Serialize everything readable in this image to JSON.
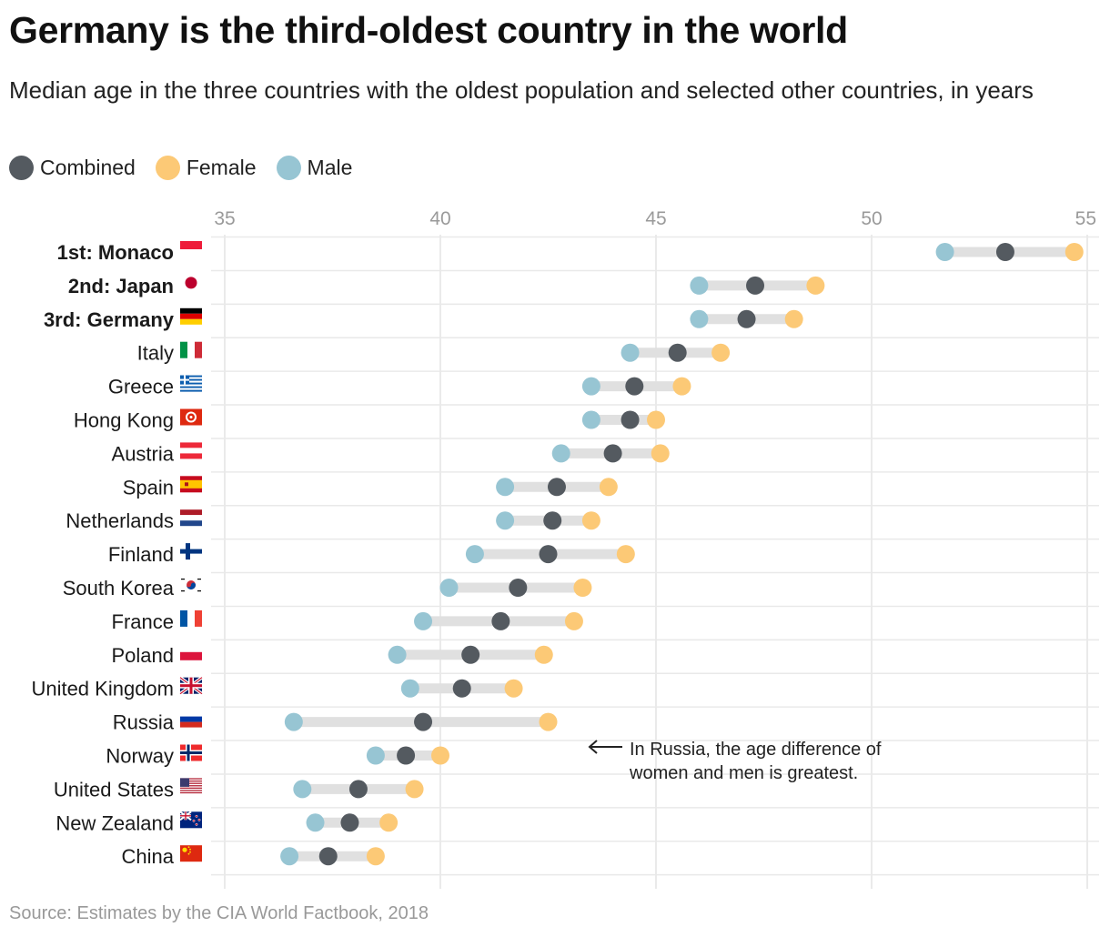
{
  "header": {
    "title": "Germany is the third-oldest country in the world",
    "subtitle": "Median age in the three countries with the oldest population and selected other countries, in years"
  },
  "legend": [
    {
      "label": "Combined",
      "color": "#545a60"
    },
    {
      "label": "Female",
      "color": "#fcc976"
    },
    {
      "label": "Male",
      "color": "#97c5d3"
    }
  ],
  "source": "Source: Estimates by the CIA World Factbook, 2018",
  "chart_data": {
    "type": "dot-range",
    "title": "Germany is the third-oldest country in the world",
    "xlim": [
      35,
      55
    ],
    "ticks": [
      35,
      40,
      45,
      50,
      55
    ],
    "series_colors": {
      "male": "#97c5d3",
      "combined": "#545a60",
      "female": "#fcc976",
      "range": "#e0e0e0"
    },
    "rows": [
      {
        "label": "1st: Monaco",
        "bold": true,
        "flag": "monaco",
        "male": 51.7,
        "combined": 53.1,
        "female": 54.7
      },
      {
        "label": "2nd: Japan",
        "bold": true,
        "flag": "japan",
        "male": 46.0,
        "combined": 47.3,
        "female": 48.7
      },
      {
        "label": "3rd: Germany",
        "bold": true,
        "flag": "germany",
        "male": 46.0,
        "combined": 47.1,
        "female": 48.2
      },
      {
        "label": "Italy",
        "bold": false,
        "flag": "italy",
        "male": 44.4,
        "combined": 45.5,
        "female": 46.5
      },
      {
        "label": "Greece",
        "bold": false,
        "flag": "greece",
        "male": 43.5,
        "combined": 44.5,
        "female": 45.6
      },
      {
        "label": "Hong Kong",
        "bold": false,
        "flag": "hongkong",
        "male": 43.5,
        "combined": 44.4,
        "female": 45.0
      },
      {
        "label": "Austria",
        "bold": false,
        "flag": "austria",
        "male": 42.8,
        "combined": 44.0,
        "female": 45.1
      },
      {
        "label": "Spain",
        "bold": false,
        "flag": "spain",
        "male": 41.5,
        "combined": 42.7,
        "female": 43.9
      },
      {
        "label": "Netherlands",
        "bold": false,
        "flag": "netherlands",
        "male": 41.5,
        "combined": 42.6,
        "female": 43.5
      },
      {
        "label": "Finland",
        "bold": false,
        "flag": "finland",
        "male": 40.8,
        "combined": 42.5,
        "female": 44.3
      },
      {
        "label": "South Korea",
        "bold": false,
        "flag": "southkorea",
        "male": 40.2,
        "combined": 41.8,
        "female": 43.3
      },
      {
        "label": "France",
        "bold": false,
        "flag": "france",
        "male": 39.6,
        "combined": 41.4,
        "female": 43.1
      },
      {
        "label": "Poland",
        "bold": false,
        "flag": "poland",
        "male": 39.0,
        "combined": 40.7,
        "female": 42.4
      },
      {
        "label": "United Kingdom",
        "bold": false,
        "flag": "uk",
        "male": 39.3,
        "combined": 40.5,
        "female": 41.7
      },
      {
        "label": "Russia",
        "bold": false,
        "flag": "russia",
        "male": 36.6,
        "combined": 39.6,
        "female": 42.5
      },
      {
        "label": "Norway",
        "bold": false,
        "flag": "norway",
        "male": 38.5,
        "combined": 39.2,
        "female": 40.0
      },
      {
        "label": "United States",
        "bold": false,
        "flag": "usa",
        "male": 36.8,
        "combined": 38.1,
        "female": 39.4
      },
      {
        "label": "New Zealand",
        "bold": false,
        "flag": "newzealand",
        "male": 37.1,
        "combined": 37.9,
        "female": 38.8
      },
      {
        "label": "China",
        "bold": false,
        "flag": "china",
        "male": 36.5,
        "combined": 37.4,
        "female": 38.5
      }
    ],
    "annotation": {
      "lines": [
        "In Russia, the age difference of",
        "women and men is greatest."
      ]
    }
  }
}
